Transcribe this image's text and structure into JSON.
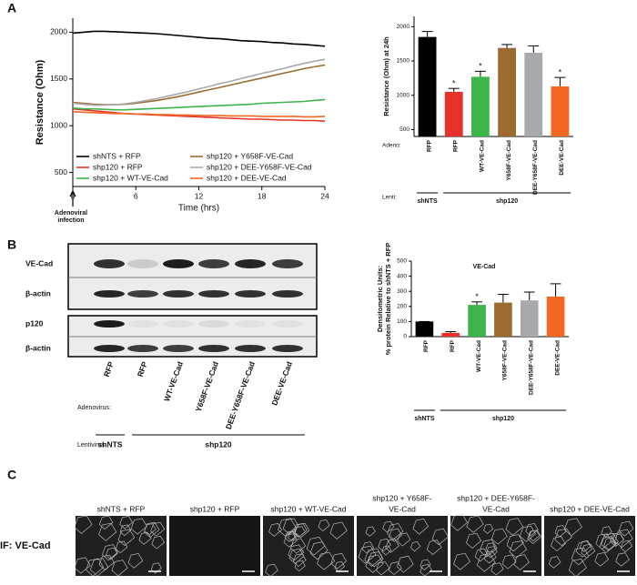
{
  "panel_labels": [
    "A",
    "B",
    "C"
  ],
  "chart_data": [
    {
      "type": "line",
      "ylabel": "Resistance (Ohm)",
      "xlabel": "Time (hrs)",
      "annotation": [
        "Adenoviral",
        "infection"
      ],
      "x": [
        0,
        1,
        2,
        3,
        4,
        5,
        6,
        7,
        8,
        9,
        10,
        11,
        12,
        13,
        14,
        15,
        16,
        17,
        18,
        19,
        20,
        21,
        22,
        23,
        24
      ],
      "xlim": [
        0,
        24
      ],
      "xticks": [
        0,
        6,
        12,
        18,
        24
      ],
      "ylim": [
        350,
        2150
      ],
      "yticks": [
        500,
        1000,
        1500,
        2000
      ],
      "series": [
        {
          "name": "shNTS + RFP",
          "color": "#000000",
          "values": [
            1990,
            2000,
            2010,
            2010,
            2005,
            2000,
            1995,
            1990,
            1985,
            1975,
            1965,
            1955,
            1945,
            1935,
            1930,
            1920,
            1910,
            1905,
            1900,
            1890,
            1885,
            1875,
            1870,
            1860,
            1850
          ]
        },
        {
          "name": "shp120 + RFP",
          "color": "#e8312b",
          "values": [
            1180,
            1170,
            1160,
            1150,
            1140,
            1130,
            1125,
            1120,
            1115,
            1110,
            1105,
            1100,
            1095,
            1090,
            1085,
            1080,
            1075,
            1070,
            1070,
            1065,
            1060,
            1060,
            1055,
            1055,
            1050
          ]
        },
        {
          "name": "shp120 + WT-VE-Cad",
          "color": "#3cb54a",
          "values": [
            1190,
            1180,
            1180,
            1175,
            1170,
            1170,
            1175,
            1180,
            1185,
            1190,
            1195,
            1200,
            1205,
            1210,
            1215,
            1220,
            1225,
            1230,
            1240,
            1245,
            1250,
            1255,
            1260,
            1270,
            1280
          ]
        },
        {
          "name": "shp120 + Y658F-VE-Cad",
          "color": "#9c6b30",
          "values": [
            1250,
            1240,
            1230,
            1225,
            1225,
            1230,
            1240,
            1255,
            1270,
            1290,
            1310,
            1335,
            1360,
            1385,
            1410,
            1435,
            1460,
            1485,
            1510,
            1535,
            1560,
            1585,
            1610,
            1630,
            1650
          ]
        },
        {
          "name": "shp120 + DEE-Y658F-VE-Cad",
          "color": "#a7a9ac",
          "values": [
            1240,
            1230,
            1220,
            1220,
            1225,
            1235,
            1250,
            1270,
            1290,
            1315,
            1340,
            1365,
            1395,
            1420,
            1450,
            1475,
            1505,
            1530,
            1560,
            1585,
            1610,
            1640,
            1665,
            1690,
            1710
          ]
        },
        {
          "name": "shp120 + DEE-VE-Cad",
          "color": "#f26722",
          "values": [
            1150,
            1145,
            1140,
            1135,
            1130,
            1130,
            1125,
            1125,
            1120,
            1120,
            1115,
            1115,
            1110,
            1110,
            1110,
            1105,
            1105,
            1105,
            1100,
            1100,
            1100,
            1100,
            1095,
            1095,
            1100
          ]
        }
      ]
    },
    {
      "type": "bar",
      "ylabel": [
        "Resistance (Ohm) at 24h"
      ],
      "categories": [
        "RFP",
        "RFP",
        "WT-VE-Cad",
        "Y658F-VE-Cad",
        "DEE-Y658F-VE-Cad",
        "DEE-VE-Cad"
      ],
      "values": [
        1850,
        1050,
        1270,
        1690,
        1620,
        1130
      ],
      "errors": [
        80,
        50,
        80,
        50,
        100,
        130
      ],
      "significance": [
        null,
        "*",
        "*",
        null,
        null,
        "*"
      ],
      "colors": [
        "#000000",
        "#e8312b",
        "#3cb54a",
        "#9c6b30",
        "#a7a9ac",
        "#f26722"
      ],
      "ylim": [
        400,
        2150
      ],
      "yticks": [
        500,
        1000,
        1500,
        2000
      ],
      "row_labels": [
        "Adeno:",
        "Lenti:"
      ],
      "groups": [
        "shNTS",
        "shp120"
      ]
    },
    {
      "type": "bar",
      "title": "VE-Cad",
      "ylabel": [
        "Densitometric Units:",
        "% protein Relative to shNTS + RFP"
      ],
      "categories": [
        "RFP",
        "RFP",
        "WT-VE-Cad",
        "Y658F-VE-Cad",
        "DEE-Y658F-VE-Cad",
        "DEE-VE-Cad"
      ],
      "values": [
        100,
        25,
        210,
        225,
        240,
        265
      ],
      "errors": [
        0,
        8,
        20,
        55,
        55,
        85
      ],
      "significance": [
        null,
        null,
        "*",
        null,
        null,
        null
      ],
      "colors": [
        "#000000",
        "#e8312b",
        "#3cb54a",
        "#9c6b30",
        "#a7a9ac",
        "#f26722"
      ],
      "ylim": [
        0,
        500
      ],
      "yticks": [
        0,
        100,
        200,
        300,
        400,
        500
      ],
      "groups": [
        "shNTS",
        "shp120"
      ]
    }
  ],
  "blot": {
    "rows": [
      "VE-Cad",
      "β-actin",
      "p120",
      "β-actin"
    ],
    "row_label": "Adenovirus:",
    "lanes": [
      "RFP",
      "RFP",
      "WT-VE-Cad",
      "Y658F-VE-Cad",
      "DEE-Y658F-VE-Cad",
      "DEE-VE-Cad"
    ],
    "group_label": "Lentivirus:",
    "groups": [
      "shNTS",
      "shp120"
    ]
  },
  "imaging": {
    "stain": "IF: VE-Cad",
    "conditions": [
      [
        "shNTS + RFP"
      ],
      [
        "shp120 + RFP"
      ],
      [
        "shp120 + WT-VE-Cad"
      ],
      [
        "shp120 + Y658F-",
        "VE-Cad"
      ],
      [
        "shp120 + DEE-Y658F-",
        "VE-Cad"
      ],
      [
        "shp120 + DEE-VE-Cad"
      ]
    ]
  }
}
